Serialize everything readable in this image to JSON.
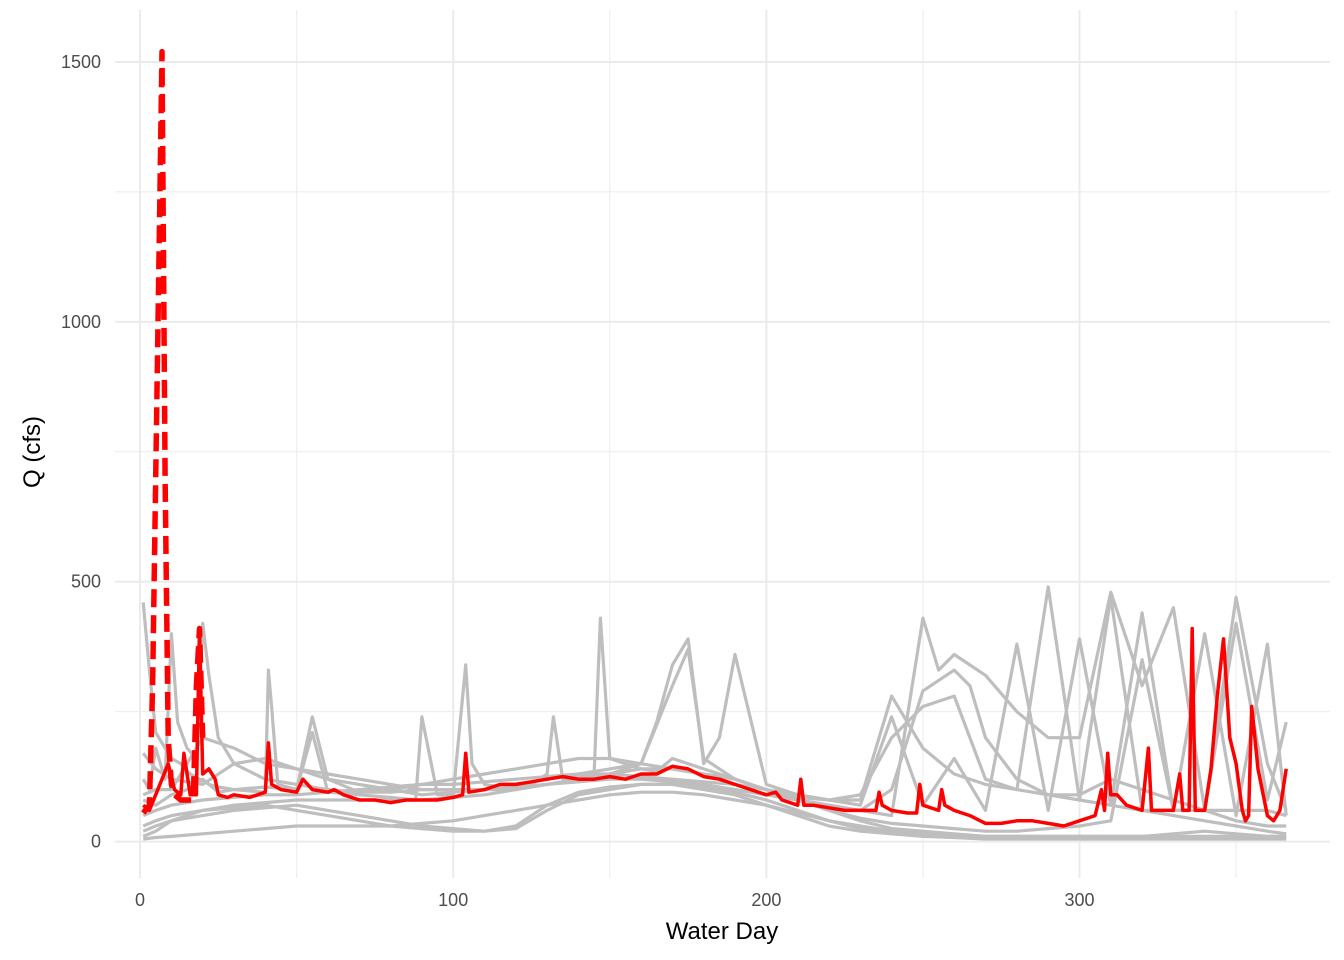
{
  "chart_data": {
    "type": "line",
    "xlabel": "Water Day",
    "ylabel": "Q (cfs)",
    "xlim": [
      -8,
      380
    ],
    "ylim": [
      -70,
      1600
    ],
    "x_ticks": [
      0,
      100,
      200,
      300
    ],
    "y_ticks": [
      0,
      500,
      1000,
      1500
    ],
    "x_tick_labels": [
      "0",
      "100",
      "200",
      "300"
    ],
    "y_tick_labels": [
      "0",
      "500",
      "1000",
      "1500"
    ],
    "grid": true,
    "legend": "none",
    "colors": {
      "background_series": "#bebebe",
      "current_series": "#ff0000",
      "peak_series": "#ff0000",
      "grid": "#ebebeb"
    },
    "series": [
      {
        "style": "gray",
        "x": [
          1,
          3,
          5,
          8,
          10,
          13,
          16,
          19,
          22,
          25,
          30,
          40,
          41,
          42,
          44,
          50,
          55,
          60,
          70,
          80,
          88,
          90,
          95,
          100,
          104,
          106,
          110,
          120,
          125,
          130,
          132,
          135,
          140,
          145,
          147,
          150,
          155,
          160,
          165,
          170,
          175,
          180,
          190,
          200,
          210,
          220,
          230,
          240,
          250,
          260,
          270,
          280,
          290,
          300,
          310,
          320,
          330,
          340,
          350,
          360,
          366
        ],
        "y": [
          460,
          330,
          210,
          180,
          160,
          150,
          130,
          120,
          110,
          105,
          100,
          95,
          330,
          260,
          110,
          100,
          210,
          95,
          90,
          85,
          80,
          240,
          90,
          90,
          340,
          150,
          110,
          100,
          110,
          130,
          240,
          120,
          125,
          130,
          430,
          160,
          150,
          140,
          135,
          160,
          150,
          140,
          120,
          100,
          80,
          60,
          45,
          35,
          30,
          25,
          20,
          20,
          25,
          30,
          40,
          350,
          60,
          400,
          50,
          380,
          50
        ]
      },
      {
        "style": "gray",
        "x": [
          1,
          3,
          5,
          8,
          10,
          12,
          15,
          18,
          20,
          22,
          25,
          30,
          40,
          50,
          60,
          70,
          80,
          90,
          100,
          110,
          120,
          130,
          140,
          150,
          160,
          170,
          175,
          180,
          190,
          200,
          210,
          220,
          230,
          240,
          250,
          255,
          260,
          270,
          280,
          290,
          300,
          310,
          320,
          330,
          340,
          350,
          360,
          366
        ],
        "y": [
          120,
          100,
          180,
          120,
          400,
          230,
          180,
          160,
          420,
          320,
          200,
          150,
          120,
          110,
          100,
          95,
          95,
          100,
          100,
          100,
          100,
          110,
          120,
          130,
          150,
          300,
          370,
          160,
          120,
          100,
          80,
          70,
          60,
          50,
          430,
          330,
          360,
          320,
          250,
          200,
          200,
          480,
          300,
          450,
          60,
          470,
          150,
          60
        ]
      },
      {
        "style": "gray",
        "x": [
          1,
          5,
          10,
          15,
          20,
          25,
          30,
          40,
          50,
          55,
          60,
          70,
          80,
          90,
          100,
          110,
          120,
          130,
          140,
          150,
          160,
          165,
          170,
          175,
          180,
          185,
          190,
          200,
          210,
          220,
          230,
          240,
          250,
          260,
          270,
          280,
          290,
          300,
          310,
          320,
          330,
          340,
          350,
          360,
          366
        ],
        "y": [
          80,
          70,
          90,
          100,
          120,
          95,
          100,
          105,
          100,
          240,
          120,
          95,
          100,
          90,
          95,
          100,
          110,
          120,
          130,
          140,
          150,
          230,
          340,
          390,
          150,
          200,
          360,
          110,
          90,
          80,
          70,
          240,
          70,
          160,
          60,
          380,
          60,
          390,
          70,
          440,
          60,
          60,
          420,
          80,
          230
        ]
      },
      {
        "style": "gray",
        "x": [
          1,
          5,
          10,
          20,
          30,
          40,
          50,
          60,
          70,
          80,
          90,
          100,
          110,
          120,
          130,
          140,
          150,
          160,
          170,
          180,
          190,
          200,
          210,
          220,
          230,
          240,
          250,
          260,
          270,
          280,
          290,
          300,
          310,
          320,
          330,
          340,
          350,
          360,
          366
        ],
        "y": [
          30,
          40,
          50,
          60,
          70,
          75,
          80,
          80,
          80,
          80,
          80,
          85,
          90,
          100,
          110,
          120,
          130,
          140,
          140,
          130,
          120,
          100,
          80,
          60,
          40,
          25,
          20,
          15,
          10,
          10,
          10,
          10,
          10,
          10,
          10,
          10,
          10,
          10,
          10
        ]
      },
      {
        "style": "gray",
        "x": [
          1,
          5,
          10,
          20,
          30,
          40,
          50,
          60,
          70,
          80,
          90,
          100,
          110,
          120,
          130,
          140,
          150,
          160,
          170,
          180,
          190,
          200,
          210,
          220,
          230,
          240,
          250,
          260,
          270,
          280,
          290,
          300,
          310,
          320,
          330,
          340,
          350,
          360,
          366
        ],
        "y": [
          10,
          20,
          40,
          60,
          65,
          70,
          60,
          50,
          40,
          30,
          25,
          20,
          20,
          25,
          60,
          90,
          100,
          110,
          110,
          100,
          90,
          70,
          50,
          30,
          20,
          15,
          12,
          10,
          8,
          8,
          8,
          8,
          8,
          8,
          8,
          8,
          8,
          8,
          8
        ]
      },
      {
        "style": "gray",
        "x": [
          1,
          5,
          10,
          20,
          30,
          40,
          50,
          60,
          70,
          80,
          90,
          100,
          110,
          120,
          130,
          140,
          150,
          160,
          170,
          180,
          190,
          200,
          210,
          220,
          230,
          240,
          250,
          260,
          265,
          270,
          280,
          290,
          300,
          310,
          320,
          330,
          340,
          350,
          360,
          366
        ],
        "y": [
          170,
          140,
          120,
          110,
          150,
          160,
          140,
          120,
          110,
          100,
          110,
          120,
          130,
          140,
          150,
          160,
          160,
          150,
          140,
          130,
          110,
          90,
          80,
          70,
          60,
          100,
          290,
          330,
          300,
          200,
          120,
          90,
          80,
          70,
          60,
          50,
          40,
          30,
          20,
          15
        ]
      },
      {
        "style": "gray",
        "x": [
          1,
          5,
          10,
          20,
          30,
          40,
          50,
          60,
          70,
          80,
          90,
          100,
          110,
          120,
          130,
          140,
          150,
          160,
          170,
          180,
          190,
          200,
          210,
          220,
          230,
          240,
          250,
          260,
          270,
          280,
          290,
          300,
          310,
          320,
          330,
          340,
          350,
          360,
          366
        ],
        "y": [
          50,
          60,
          70,
          80,
          85,
          90,
          90,
          95,
          100,
          105,
          110,
          110,
          115,
          120,
          125,
          130,
          130,
          125,
          120,
          115,
          110,
          100,
          90,
          80,
          90,
          200,
          260,
          280,
          120,
          100,
          490,
          80,
          470,
          60,
          60,
          60,
          60,
          60,
          50
        ]
      },
      {
        "style": "gray",
        "x": [
          1,
          5,
          10,
          20,
          30,
          40,
          50,
          60,
          70,
          80,
          90,
          100,
          110,
          120,
          130,
          140,
          150,
          160,
          170,
          180,
          190,
          200,
          210,
          220,
          230,
          240,
          250,
          260,
          270,
          280,
          290,
          300,
          310,
          320,
          330,
          340,
          350,
          360,
          366
        ],
        "y": [
          20,
          30,
          40,
          50,
          60,
          65,
          70,
          60,
          50,
          40,
          30,
          25,
          20,
          30,
          70,
          95,
          105,
          110,
          110,
          105,
          95,
          80,
          60,
          40,
          30,
          20,
          15,
          12,
          10,
          10,
          10,
          10,
          10,
          10,
          15,
          20,
          15,
          10,
          10
        ]
      },
      {
        "style": "gray",
        "x": [
          1,
          5,
          10,
          20,
          30,
          40,
          50,
          60,
          70,
          80,
          90,
          100,
          110,
          120,
          130,
          140,
          150,
          160,
          170,
          180,
          190,
          200,
          210,
          220,
          230,
          240,
          250,
          260,
          270,
          280,
          290,
          300,
          310,
          320,
          330,
          340,
          350,
          360,
          366
        ],
        "y": [
          90,
          100,
          100,
          200,
          180,
          150,
          140,
          130,
          120,
          110,
          100,
          100,
          100,
          105,
          110,
          115,
          120,
          120,
          115,
          110,
          100,
          90,
          85,
          80,
          80,
          280,
          180,
          130,
          110,
          100,
          90,
          90,
          120,
          100,
          80,
          60,
          40,
          30,
          30
        ]
      },
      {
        "style": "gray",
        "x": [
          1,
          5,
          10,
          20,
          30,
          40,
          50,
          60,
          70,
          80,
          90,
          100,
          110,
          120,
          130,
          140,
          150,
          160,
          170,
          180,
          190,
          200,
          210,
          220,
          230,
          240,
          250,
          260,
          270,
          280,
          290,
          300,
          310,
          320,
          330,
          340,
          350,
          360,
          366
        ],
        "y": [
          5,
          8,
          10,
          15,
          20,
          25,
          30,
          30,
          30,
          30,
          35,
          40,
          50,
          60,
          70,
          80,
          90,
          95,
          95,
          90,
          80,
          70,
          55,
          40,
          25,
          15,
          10,
          8,
          5,
          5,
          5,
          5,
          5,
          5,
          5,
          5,
          5,
          5,
          5
        ]
      },
      {
        "style": "current",
        "x": [
          1,
          3,
          5,
          7,
          9,
          11,
          13,
          14,
          16,
          18,
          19,
          20,
          22,
          24,
          25,
          28,
          30,
          35,
          40,
          41,
          42,
          45,
          50,
          52,
          55,
          60,
          62,
          65,
          70,
          75,
          80,
          85,
          90,
          95,
          100,
          103,
          104,
          105,
          110,
          115,
          120,
          125,
          130,
          135,
          140,
          145,
          150,
          155,
          160,
          165,
          170,
          175,
          180,
          185,
          190,
          195,
          200,
          203,
          205,
          210,
          211,
          212,
          215,
          220,
          225,
          230,
          235,
          236,
          237,
          240,
          245,
          248,
          249,
          250,
          255,
          256,
          257,
          260,
          265,
          270,
          275,
          280,
          285,
          290,
          295,
          300,
          305,
          307,
          308,
          309,
          310,
          312,
          315,
          320,
          322,
          323,
          325,
          330,
          332,
          333,
          335,
          336,
          337,
          340,
          342,
          344,
          346,
          348,
          350,
          352,
          353,
          354,
          355,
          357,
          360,
          362,
          364,
          366
        ],
        "y": [
          70,
          60,
          90,
          120,
          150,
          100,
          90,
          170,
          90,
          90,
          410,
          130,
          140,
          120,
          90,
          85,
          90,
          85,
          95,
          190,
          110,
          100,
          95,
          120,
          100,
          95,
          100,
          90,
          80,
          80,
          75,
          80,
          80,
          80,
          85,
          90,
          170,
          95,
          100,
          110,
          110,
          115,
          120,
          125,
          120,
          120,
          125,
          120,
          130,
          130,
          145,
          140,
          125,
          120,
          110,
          100,
          90,
          95,
          80,
          70,
          120,
          70,
          70,
          65,
          60,
          60,
          60,
          95,
          70,
          60,
          55,
          55,
          110,
          70,
          60,
          100,
          70,
          60,
          50,
          35,
          35,
          40,
          40,
          35,
          30,
          40,
          50,
          100,
          60,
          170,
          90,
          90,
          70,
          60,
          180,
          60,
          60,
          60,
          130,
          60,
          60,
          410,
          60,
          60,
          140,
          280,
          390,
          200,
          150,
          60,
          40,
          50,
          260,
          140,
          50,
          40,
          60,
          140
        ]
      },
      {
        "style": "peak",
        "x": [
          1,
          3,
          4,
          5,
          6,
          7,
          8,
          9,
          10,
          11,
          12,
          13,
          15,
          17,
          18,
          19,
          20
        ],
        "y": [
          55,
          70,
          300,
          700,
          1100,
          1520,
          700,
          200,
          110,
          90,
          85,
          80,
          80,
          80,
          300,
          410,
          200
        ]
      }
    ]
  }
}
